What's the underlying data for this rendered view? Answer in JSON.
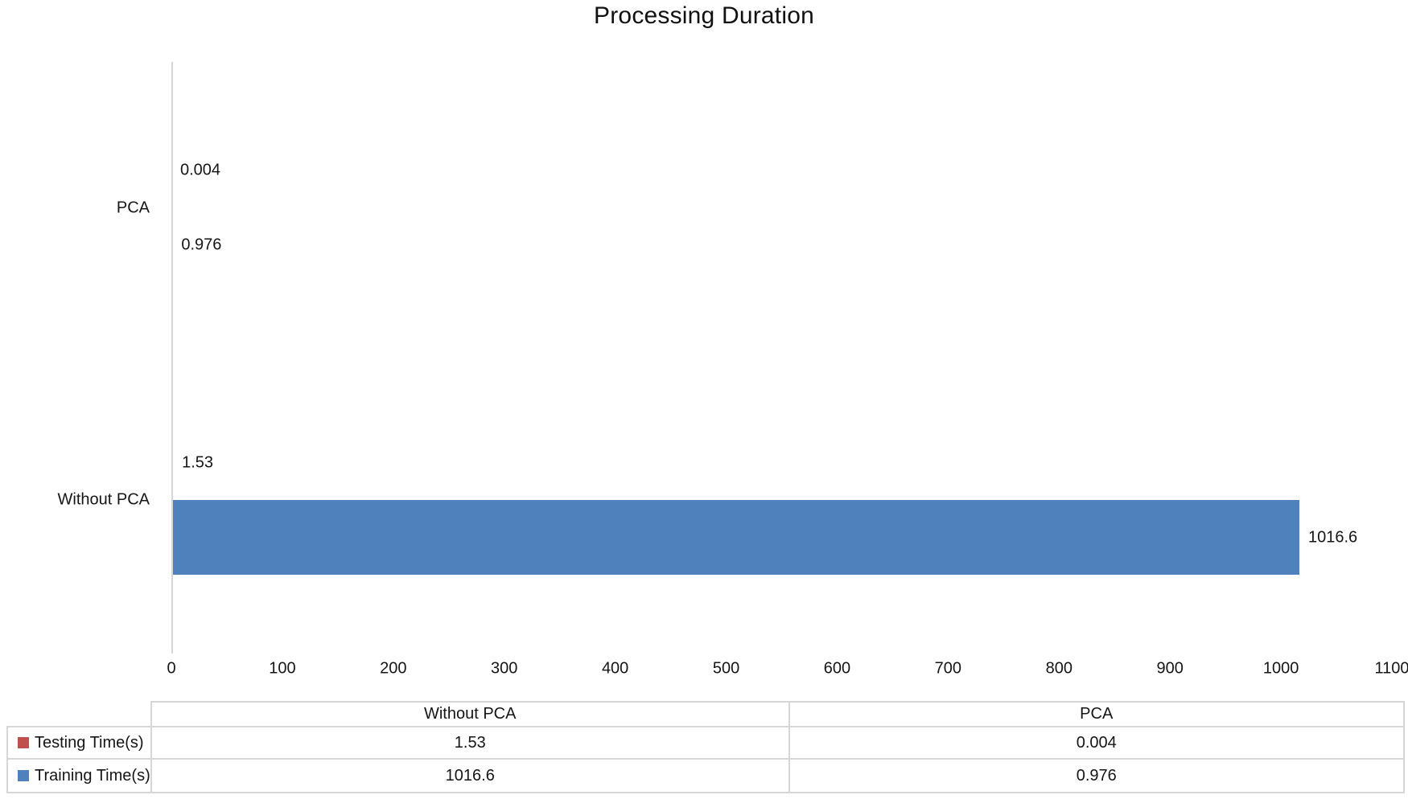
{
  "title": "Processing Duration",
  "chart_data": {
    "type": "bar",
    "orientation": "horizontal",
    "title": "Processing Duration",
    "categories": [
      "PCA",
      "Without PCA"
    ],
    "series": [
      {
        "name": "Testing Time(s)",
        "color": "#C0504D",
        "values": [
          0.004,
          1.53
        ],
        "labels": [
          "0.004",
          "1.53"
        ]
      },
      {
        "name": "Training Time(s)",
        "color": "#4F81BD",
        "values": [
          0.976,
          1016.6
        ],
        "labels": [
          "0.976",
          "1016.6"
        ]
      }
    ],
    "xlabel": "",
    "ylabel": "",
    "xlim": [
      0,
      1100
    ],
    "xticks": [
      0,
      100,
      200,
      300,
      400,
      500,
      600,
      700,
      800,
      900,
      1000,
      1100
    ],
    "grid": false,
    "legend_position": "bottom-table"
  },
  "table": {
    "columns": [
      "Without PCA",
      "PCA"
    ],
    "rows": [
      {
        "label": "Testing Time(s)",
        "swatch_color": "#C0504D",
        "values": [
          "1.53",
          "0.004"
        ]
      },
      {
        "label": "Training Time(s)",
        "swatch_color": "#4F81BD",
        "values": [
          "1016.6",
          "0.976"
        ]
      }
    ]
  },
  "colors": {
    "bar_blue": "#4F81BD",
    "bar_red": "#C0504D",
    "axis_gray": "#d5d5d5"
  }
}
